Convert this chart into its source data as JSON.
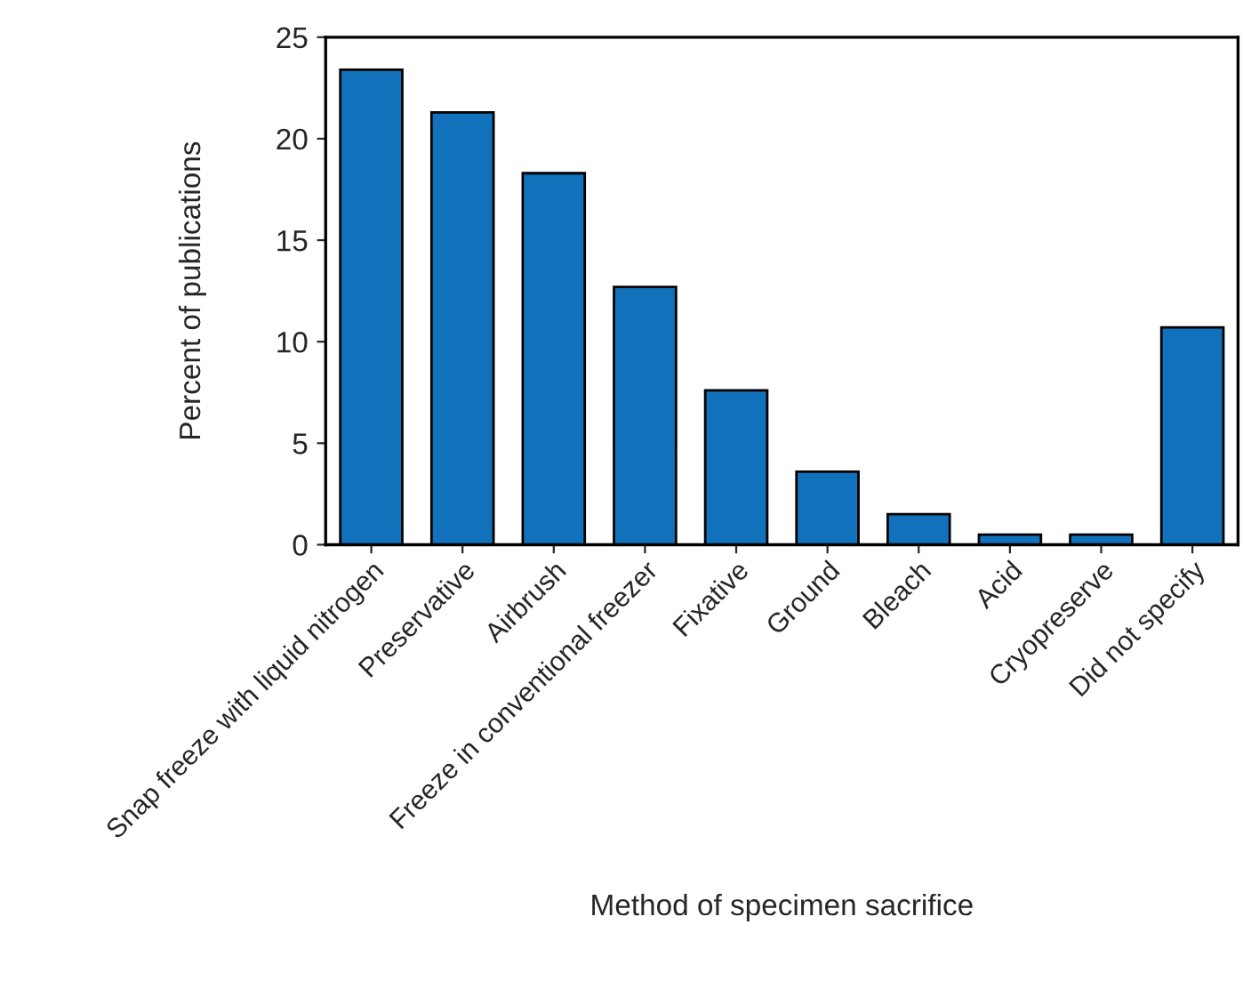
{
  "chart_data": {
    "type": "bar",
    "categories": [
      "Snap freeze with liquid nitrogen",
      "Preservative",
      "Airbrush",
      "Freeze in conventional freezer",
      "Fixative",
      "Ground",
      "Bleach",
      "Acid",
      "Cryopreserve",
      "Did not specify"
    ],
    "values": [
      23.4,
      21.3,
      18.3,
      12.7,
      7.6,
      3.6,
      1.5,
      0.5,
      0.5,
      10.7
    ],
    "color": "#1172bb",
    "xlabel": "Method of specimen sacrifice",
    "ylabel": "Percent of publications",
    "ylim": [
      0,
      25
    ],
    "yticks": [
      0,
      5,
      10,
      15,
      20,
      25
    ],
    "grid": false,
    "legend": false
  }
}
